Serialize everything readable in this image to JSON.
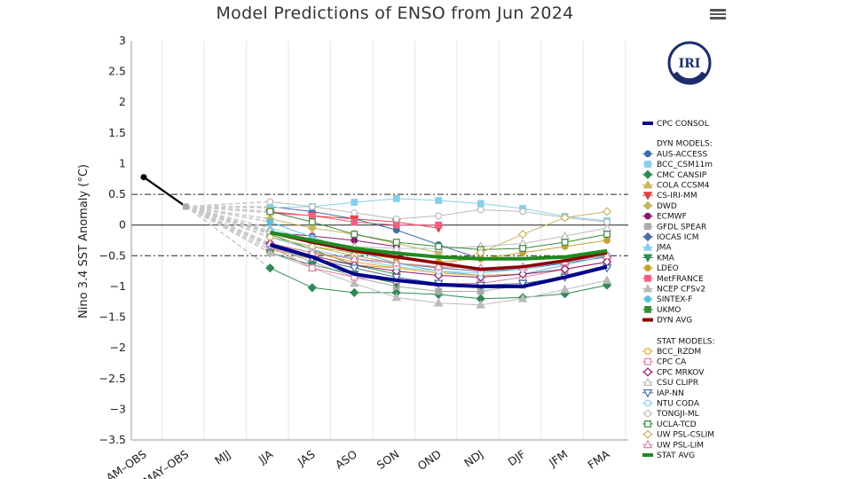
{
  "title": "Model Predictions of ENSO from Jun 2024",
  "logo_text": "IRI",
  "chart_data": {
    "type": "line",
    "ylabel": "Nino 3.4 SST Anomaly (°C)",
    "ylim": [
      -3.5,
      3
    ],
    "yticks": [
      3,
      2.5,
      2,
      1.5,
      1,
      0.5,
      0,
      -0.5,
      -1,
      -1.5,
      -2,
      -2.5,
      -3,
      -3.5
    ],
    "ytick_labels": [
      "3",
      "2.5",
      "2",
      "1.5",
      "1",
      "0.5",
      "0",
      "−0.5",
      "−1",
      "−1.5",
      "−2",
      "−2.5",
      "−3",
      "−3.5"
    ],
    "categories": [
      "AM-OBS",
      "MAY-OBS",
      "MJJ",
      "JJA",
      "JAS",
      "ASO",
      "SON",
      "OND",
      "NDJ",
      "DJF",
      "JFM",
      "FMA"
    ],
    "category_labels": [
      "AM–OBS",
      "MAY–OBS",
      "MJJ",
      "JJA",
      "JAS",
      "ASO",
      "SON",
      "OND",
      "NDJ",
      "DJF",
      "JFM",
      "FMA"
    ],
    "reference_lines": [
      0.5,
      -0.5
    ],
    "observed": [
      0.78,
      0.3
    ],
    "model_start": 0.3,
    "series": [
      {
        "name": "CPC CONSOL",
        "group": "consol",
        "color": "#00008B",
        "marker": "none",
        "width": 4,
        "values": [
          null,
          null,
          null,
          -0.32,
          -0.52,
          -0.8,
          -0.9,
          -0.97,
          -1.0,
          -1.0,
          -0.85,
          -0.68
        ]
      },
      {
        "name": "AUS-ACCESS",
        "group": "dyn",
        "color": "#3b6fa8",
        "marker": "circle",
        "fill": true,
        "values": [
          null,
          null,
          null,
          0.3,
          0.22,
          0.1,
          -0.08,
          -0.32,
          -0.55,
          null,
          null,
          null
        ]
      },
      {
        "name": "BCC_CSM11m",
        "group": "dyn",
        "color": "#87ceeb",
        "marker": "square",
        "fill": true,
        "values": [
          null,
          null,
          null,
          0.28,
          0.3,
          0.37,
          0.43,
          0.4,
          0.35,
          0.27,
          0.14,
          0.07
        ]
      },
      {
        "name": "CMC CANSIP",
        "group": "dyn",
        "color": "#2e8b57",
        "marker": "diamond",
        "fill": true,
        "values": [
          null,
          null,
          null,
          -0.7,
          -1.02,
          -1.1,
          -1.1,
          -1.13,
          -1.2,
          -1.18,
          -1.12,
          -0.98
        ]
      },
      {
        "name": "COLA CCSM4",
        "group": "dyn",
        "color": "#c8b560",
        "marker": "triangle",
        "fill": true,
        "values": [
          null,
          null,
          null,
          -0.4,
          -0.55,
          -0.65,
          -0.7,
          -0.78,
          -0.82,
          null,
          null,
          null
        ]
      },
      {
        "name": "CS-IRI-MM",
        "group": "dyn",
        "color": "#e04040",
        "marker": "tridown",
        "fill": true,
        "values": [
          null,
          null,
          null,
          0.2,
          0.15,
          0.1,
          0.05,
          -0.05,
          null,
          null,
          null,
          null
        ]
      },
      {
        "name": "DWD",
        "group": "dyn",
        "color": "#c8b560",
        "marker": "diamond",
        "fill": true,
        "values": [
          null,
          null,
          null,
          0.1,
          -0.05,
          -0.15,
          -0.3,
          -0.45,
          null,
          null,
          null,
          null
        ]
      },
      {
        "name": "ECMWF",
        "group": "dyn",
        "color": "#8b1a6b",
        "marker": "circle",
        "fill": true,
        "values": [
          null,
          null,
          null,
          -0.12,
          -0.18,
          -0.25,
          -0.35,
          null,
          null,
          null,
          null,
          null
        ]
      },
      {
        "name": "GFDL SPEAR",
        "group": "dyn",
        "color": "#aaaaaa",
        "marker": "square",
        "fill": true,
        "values": [
          null,
          null,
          null,
          -0.35,
          -0.6,
          -0.85,
          -1.0,
          -1.08,
          -1.08,
          -0.98,
          -0.82,
          -0.65
        ]
      },
      {
        "name": "IOCAS ICM",
        "group": "dyn",
        "color": "#4a6fa5",
        "marker": "diamond",
        "fill": true,
        "values": [
          null,
          null,
          null,
          -0.3,
          -0.45,
          -0.55,
          -0.62,
          -0.7,
          -0.75,
          -0.72,
          -0.62,
          -0.52
        ]
      },
      {
        "name": "JMA",
        "group": "dyn",
        "color": "#87ceeb",
        "marker": "triangle",
        "fill": true,
        "values": [
          null,
          null,
          null,
          -0.05,
          -0.25,
          -0.48,
          -0.65,
          null,
          null,
          null,
          null,
          null
        ]
      },
      {
        "name": "KMA",
        "group": "dyn",
        "color": "#2e8b57",
        "marker": "tridown",
        "fill": true,
        "values": [
          null,
          null,
          null,
          -0.45,
          -0.65,
          -0.8,
          -0.95,
          null,
          null,
          null,
          null,
          null
        ]
      },
      {
        "name": "LDEO",
        "group": "dyn",
        "color": "#c8a030",
        "marker": "circle",
        "fill": true,
        "values": [
          null,
          null,
          null,
          -0.2,
          -0.35,
          -0.45,
          -0.55,
          -0.6,
          -0.55,
          -0.45,
          -0.35,
          -0.25
        ]
      },
      {
        "name": "MetFRANCE",
        "group": "dyn",
        "color": "#f06080",
        "marker": "square",
        "fill": true,
        "values": [
          null,
          null,
          null,
          0.22,
          0.15,
          0.05,
          0.0,
          0.0,
          null,
          null,
          null,
          null
        ]
      },
      {
        "name": "NCEP CFSv2",
        "group": "dyn",
        "color": "#bbbbbb",
        "marker": "triangle",
        "fill": true,
        "values": [
          null,
          null,
          null,
          -0.45,
          -0.7,
          -0.95,
          -1.18,
          -1.27,
          -1.3,
          -1.2,
          -1.05,
          -0.9
        ]
      },
      {
        "name": "SINTEX-F",
        "group": "dyn",
        "color": "#5bc0de",
        "marker": "circle",
        "fill": true,
        "values": [
          null,
          null,
          null,
          0.05,
          -0.2,
          -0.42,
          -0.62,
          -0.75,
          -0.82,
          -0.8,
          -0.65,
          -0.5
        ]
      },
      {
        "name": "UKMO",
        "group": "dyn",
        "color": "#3a8a3a",
        "marker": "square",
        "fill": true,
        "values": [
          null,
          null,
          null,
          -0.15,
          -0.4,
          -0.65,
          -0.8,
          null,
          null,
          null,
          null,
          null
        ]
      },
      {
        "name": "DYN AVG",
        "group": "dyn",
        "color": "#8b0000",
        "marker": "none",
        "width": 3.5,
        "values": [
          null,
          null,
          null,
          -0.12,
          -0.28,
          -0.42,
          -0.52,
          -0.62,
          -0.72,
          -0.68,
          -0.58,
          -0.45
        ]
      },
      {
        "name": "BCC_RZDM",
        "group": "stat",
        "color": "#e0a830",
        "marker": "circle",
        "fill": false,
        "values": [
          null,
          null,
          null,
          -0.3,
          -0.45,
          -0.6,
          -0.7,
          -0.78,
          -0.82,
          -0.8,
          -0.72,
          -0.6
        ]
      },
      {
        "name": "CPC CA",
        "group": "stat",
        "color": "#e080a0",
        "marker": "square",
        "fill": false,
        "values": [
          null,
          null,
          null,
          -0.35,
          -0.7,
          -0.85,
          -0.9,
          -0.95,
          -0.95,
          -0.85,
          -0.72,
          -0.6
        ]
      },
      {
        "name": "CPC MRKOV",
        "group": "stat",
        "color": "#8b1a6b",
        "marker": "diamond",
        "fill": false,
        "values": [
          null,
          null,
          null,
          -0.3,
          -0.5,
          -0.65,
          -0.75,
          -0.82,
          -0.85,
          -0.8,
          -0.72,
          -0.6
        ]
      },
      {
        "name": "CSU CLIPR",
        "group": "stat",
        "color": "#bbbbbb",
        "marker": "triangle",
        "fill": false,
        "values": [
          null,
          null,
          null,
          -0.1,
          -0.25,
          -0.35,
          -0.38,
          -0.38,
          -0.35,
          -0.3,
          -0.18,
          -0.05
        ]
      },
      {
        "name": "IAP-NN",
        "group": "stat",
        "color": "#4a6fa5",
        "marker": "tridown",
        "fill": false,
        "values": [
          null,
          null,
          null,
          -0.35,
          -0.55,
          -0.7,
          -0.85,
          -0.95,
          -0.98,
          -0.95,
          -0.85,
          -0.7
        ]
      },
      {
        "name": "NTU CODA",
        "group": "stat",
        "color": "#87ceeb",
        "marker": "circle",
        "fill": false,
        "values": [
          null,
          null,
          null,
          -0.2,
          -0.4,
          -0.55,
          -0.68,
          -0.75,
          -0.78,
          -0.72,
          -0.6,
          -0.48
        ]
      },
      {
        "name": "TONGJI-ML",
        "group": "stat",
        "color": "#bbbbbb",
        "marker": "circle",
        "fill": false,
        "values": [
          null,
          null,
          null,
          0.38,
          0.3,
          0.2,
          0.1,
          0.15,
          0.25,
          0.22,
          0.12,
          0.05
        ]
      },
      {
        "name": "UCLA-TCD",
        "group": "stat",
        "color": "#3a8a3a",
        "marker": "square",
        "fill": false,
        "values": [
          null,
          null,
          null,
          0.22,
          0.05,
          -0.15,
          -0.28,
          -0.35,
          -0.4,
          -0.38,
          -0.28,
          -0.15
        ]
      },
      {
        "name": "UW PSL-CSLIM",
        "group": "stat",
        "color": "#c8b560",
        "marker": "diamond",
        "fill": false,
        "values": [
          null,
          null,
          null,
          -0.2,
          -0.35,
          -0.5,
          -0.62,
          -0.68,
          -0.45,
          -0.15,
          0.12,
          0.22
        ]
      },
      {
        "name": "UW PSL-LIM",
        "group": "stat",
        "color": "#e080a0",
        "marker": "triangle",
        "fill": false,
        "values": [
          null,
          null,
          null,
          -0.3,
          -0.45,
          -0.55,
          -0.62,
          -0.68,
          -0.7,
          -0.68,
          -0.6,
          -0.5
        ]
      },
      {
        "name": "STAT AVG",
        "group": "stat",
        "color": "#1f8a1f",
        "marker": "none",
        "width": 4,
        "values": [
          null,
          null,
          null,
          -0.12,
          -0.25,
          -0.38,
          -0.46,
          -0.52,
          -0.55,
          -0.55,
          -0.52,
          -0.42
        ]
      }
    ],
    "legend": {
      "consol": [
        "CPC CONSOL"
      ],
      "dyn_header": "DYN MODELS:",
      "dyn": [
        "AUS-ACCESS",
        "BCC_CSM11m",
        "CMC CANSIP",
        "COLA CCSM4",
        "CS-IRI-MM",
        "DWD",
        "ECMWF",
        "GFDL SPEAR",
        "IOCAS ICM",
        "JMA",
        "KMA",
        "LDEO",
        "MetFRANCE",
        "NCEP CFSv2",
        "SINTEX-F",
        "UKMO",
        "DYN AVG"
      ],
      "stat_header": "STAT MODELS:",
      "stat": [
        "BCC_RZDM",
        "CPC CA",
        "CPC MRKOV",
        "CSU CLIPR",
        "IAP-NN",
        "NTU CODA",
        "TONGJI-ML",
        "UCLA-TCD",
        "UW PSL-CSLIM",
        "UW PSL-LIM",
        "STAT AVG"
      ]
    }
  }
}
